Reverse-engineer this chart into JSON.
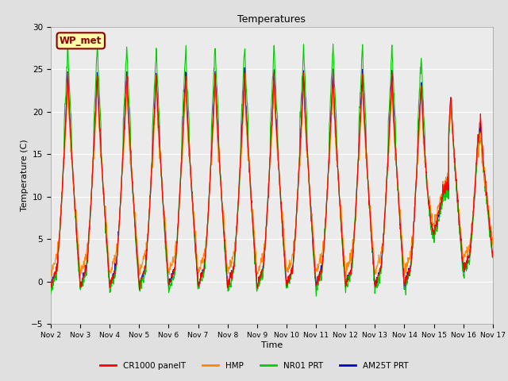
{
  "title": "Temperatures",
  "xlabel": "Time",
  "ylabel": "Temperature (C)",
  "ylim": [
    -5,
    30
  ],
  "yticks": [
    -5,
    0,
    5,
    10,
    15,
    20,
    25,
    30
  ],
  "series": [
    "CR1000 panelT",
    "HMP",
    "NR01 PRT",
    "AM25T PRT"
  ],
  "colors": [
    "#FF0000",
    "#FF8800",
    "#00CC00",
    "#0000CC"
  ],
  "linewidth": 0.8,
  "bg_color": "#E0E0E0",
  "plot_bg": "#EBEBEB",
  "grid_color": "#FFFFFF",
  "station_label": "WP_met",
  "station_label_color": "#8B0000",
  "station_bg": "#FFFFAA",
  "x_tick_days": [
    2,
    3,
    4,
    5,
    6,
    7,
    8,
    9,
    10,
    11,
    12,
    13,
    14,
    15,
    16,
    17
  ],
  "x_tick_labels": [
    "Nov 2",
    "Nov 3",
    "Nov 4",
    "Nov 5",
    "Nov 6",
    "Nov 7",
    "Nov 8",
    "Nov 9",
    "Nov 10",
    "Nov 11",
    "Nov 12",
    "Nov 13",
    "Nov 14",
    "Nov 15",
    "Nov 16",
    "Nov 17"
  ],
  "n_days": 15,
  "pts_per_day": 96,
  "seed": 42
}
